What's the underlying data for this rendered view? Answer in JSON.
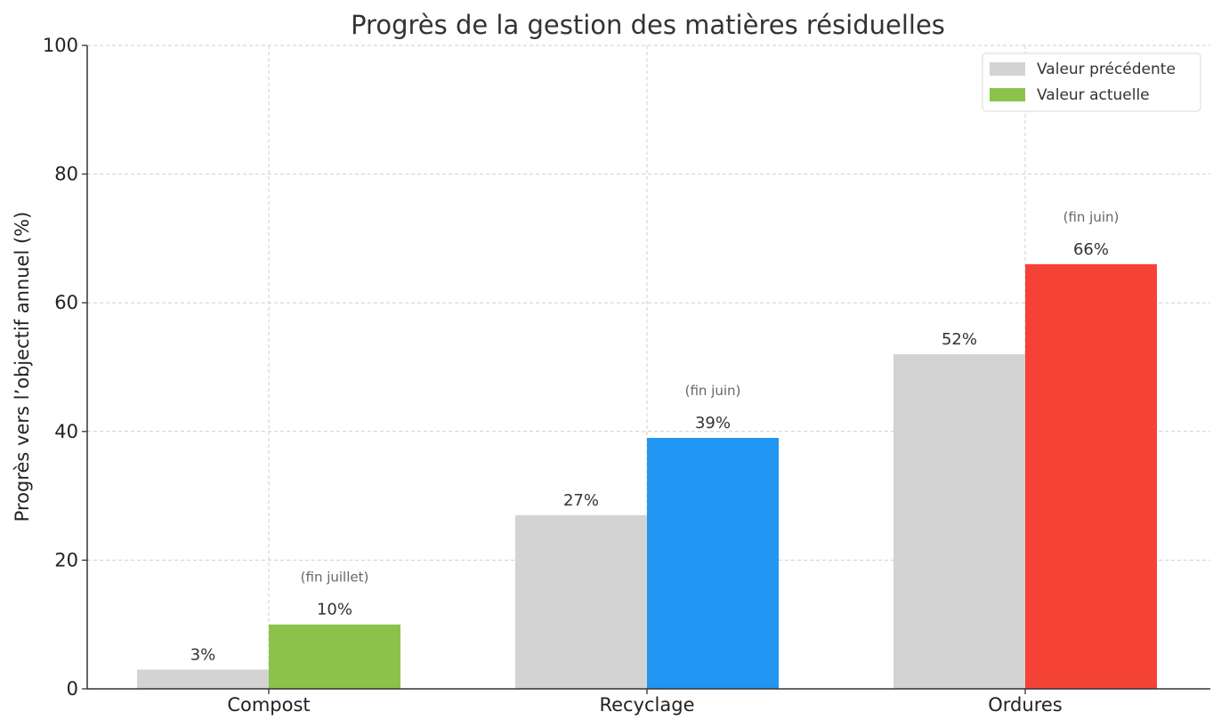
{
  "chart_data": {
    "type": "bar",
    "title": "Progrès de la gestion des matières résiduelles",
    "xlabel": "",
    "ylabel": "Progrès vers l’objectif annuel (%)",
    "ylim": [
      0,
      100
    ],
    "yticks": [
      "0",
      "20",
      "40",
      "60",
      "80",
      "100"
    ],
    "grid": true,
    "legend_position": "top-right",
    "categories": [
      "Compost",
      "Recyclage",
      "Ordures"
    ],
    "series": [
      {
        "name": "Valeur précédente",
        "values": [
          3,
          27,
          52
        ],
        "labels": [
          "3%",
          "27%",
          "52%"
        ],
        "color": "#d3d3d3"
      },
      {
        "name": "Valeur actuelle",
        "values": [
          10,
          39,
          66
        ],
        "labels": [
          "10%",
          "39%",
          "66%"
        ],
        "notes": [
          "(fin juillet)",
          "(fin juin)",
          "(fin juin)"
        ],
        "colors": [
          "#8bc34a",
          "#2196f3",
          "#f44336"
        ],
        "legend_color": "#8bc34a"
      }
    ]
  }
}
